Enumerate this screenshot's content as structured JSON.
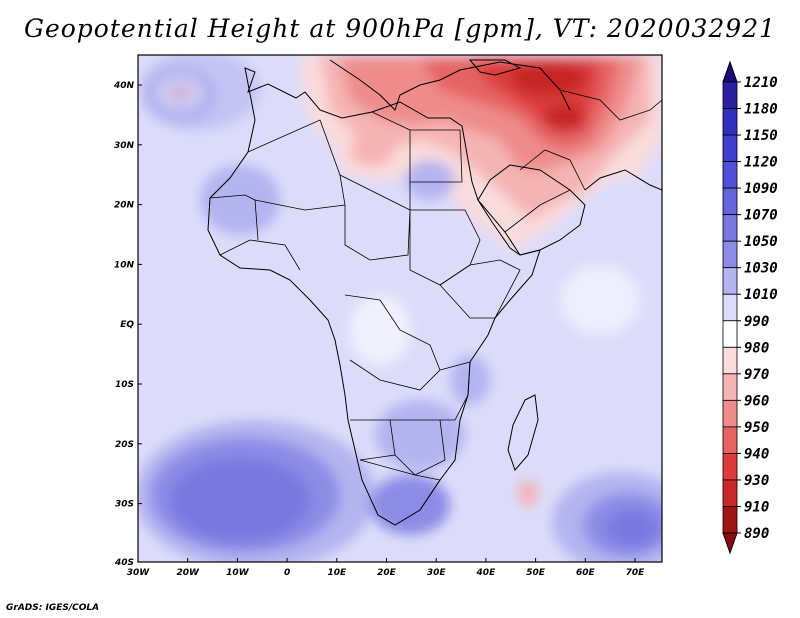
{
  "title": "Geopotential Height at 900hPa [gpm], VT: 2020032921",
  "footer": "GrADS: IGES/COLA",
  "map": {
    "region": "Africa, Mediterranean and Middle East",
    "lon_range": [
      -30,
      75
    ],
    "lat_range": [
      -40,
      45
    ],
    "x_ticks": [
      "30W",
      "20W",
      "10W",
      "0",
      "10E",
      "20E",
      "30E",
      "40E",
      "50E",
      "60E",
      "70E"
    ],
    "y_ticks": [
      "40N",
      "30N",
      "20N",
      "10N",
      "EQ",
      "10S",
      "20S",
      "30S",
      "40S"
    ]
  },
  "colorbar": {
    "labels": [
      "1210",
      "1180",
      "1150",
      "1120",
      "1090",
      "1070",
      "1050",
      "1030",
      "1010",
      "990",
      "980",
      "970",
      "960",
      "950",
      "940",
      "930",
      "910",
      "890"
    ],
    "colors": [
      "#1e0a78",
      "#2a20a0",
      "#3030c0",
      "#4040d0",
      "#5050d8",
      "#6464dc",
      "#7878e0",
      "#8c8ce6",
      "#b4b4f0",
      "#dcdcfa",
      "#ffffff",
      "#fadcdc",
      "#f5b4b4",
      "#ee8c8c",
      "#e66464",
      "#dc3c3c",
      "#c82828",
      "#a01414",
      "#8c0a0a"
    ]
  }
}
